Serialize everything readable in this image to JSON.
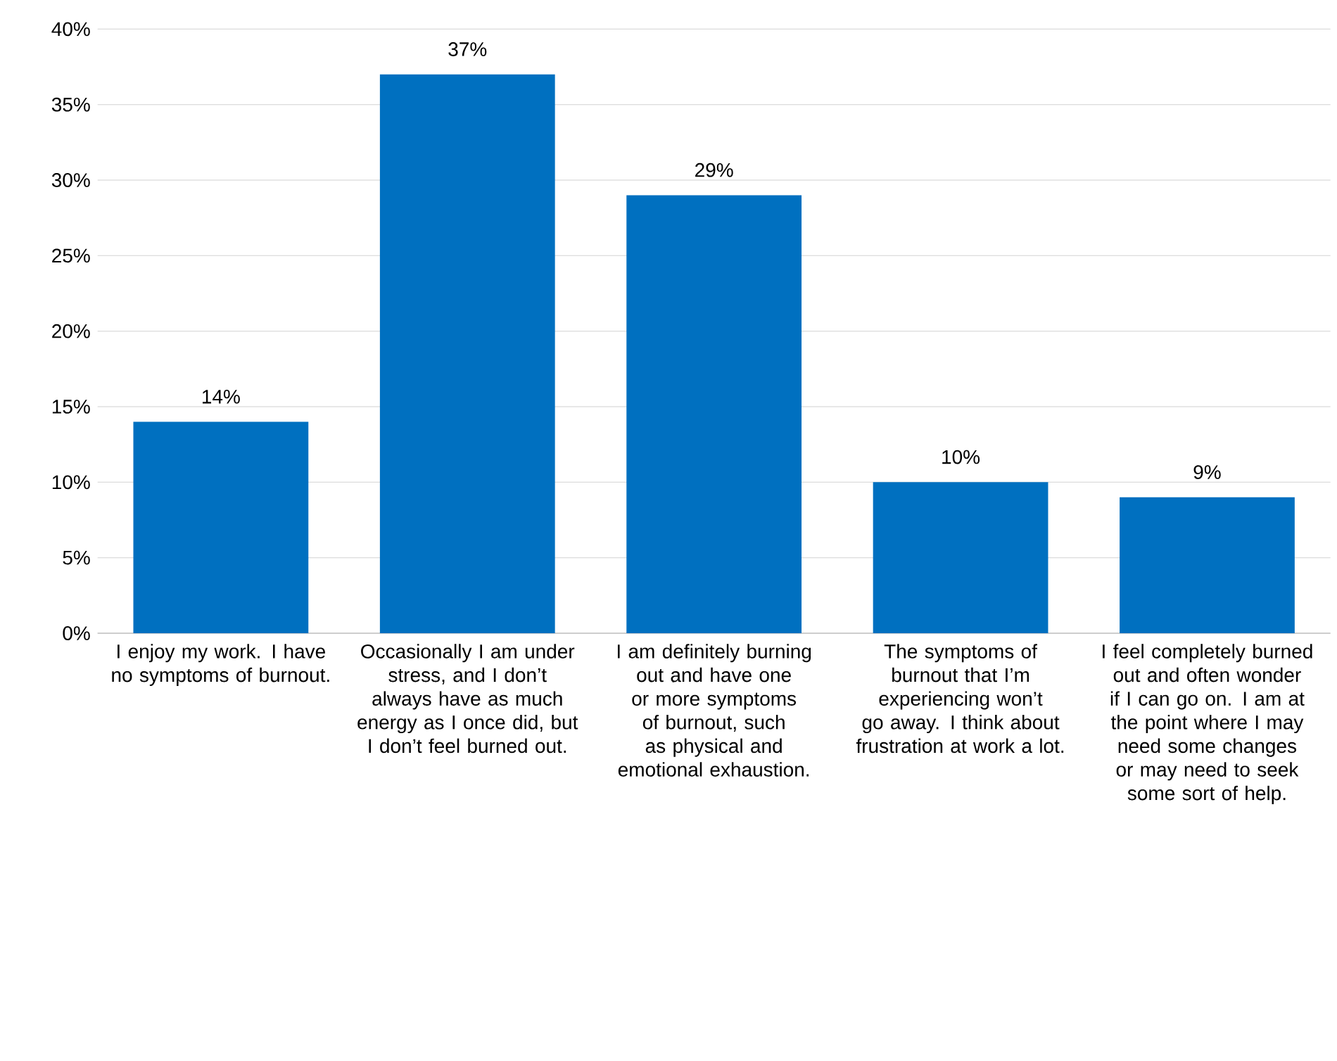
{
  "chart_data": {
    "type": "bar",
    "categories": [
      "I enjoy my work. I have no symptoms of burnout.",
      "Occasionally I am under stress, and I don’t always have as much energy as I once did, but I don’t feel burned out.",
      "I am definitely burning out and have one or more symptoms of burnout, such as physical and emotional exhaustion.",
      "The symptoms of burnout that I’m experiencing won’t go away. I think about frustration at work a lot.",
      "I feel completely burned out and often wonder if I can go on. I am at the point where I may need some changes or may need to seek some sort of help."
    ],
    "values": [
      14,
      37,
      29,
      10,
      9
    ],
    "value_labels": [
      "14%",
      "37%",
      "29%",
      "10%",
      "9%"
    ],
    "color": "#0070c0",
    "ylim": [
      0,
      40
    ],
    "yticks": [
      {
        "value": 0,
        "label": "0%"
      },
      {
        "value": 5,
        "label": "5%"
      },
      {
        "value": 10,
        "label": "10%"
      },
      {
        "value": 15,
        "label": "15%"
      },
      {
        "value": 20,
        "label": "20%"
      },
      {
        "value": 25,
        "label": "25%"
      },
      {
        "value": 30,
        "label": "30%"
      },
      {
        "value": 35,
        "label": "35%"
      },
      {
        "value": 40,
        "label": "40%"
      }
    ],
    "grid": "y"
  }
}
